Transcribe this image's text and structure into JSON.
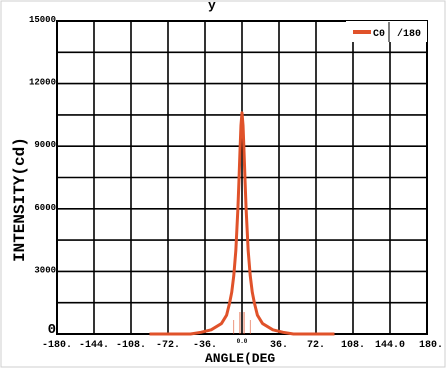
{
  "chart_data": {
    "type": "line",
    "title_fragment": "y",
    "xlabel": "ANGLE(DEG",
    "ylabel": "INTENSITY(cd)",
    "xlim": [
      -180,
      180
    ],
    "ylim": [
      0,
      15000
    ],
    "x_tick_labels": [
      "-180.",
      "-144.",
      "-108.",
      "-72.",
      "-36.",
      "0.0",
      "36.",
      "72.",
      "108.",
      "144.0",
      "180."
    ],
    "x_tick_values": [
      -180,
      -144,
      -108,
      -72,
      -36,
      0,
      36,
      72,
      108,
      144,
      180
    ],
    "y_tick_labels": [
      "0",
      "3000",
      "6000",
      "9000",
      "12000",
      "15000"
    ],
    "y_tick_values": [
      0,
      3000,
      6000,
      9000,
      12000,
      15000
    ],
    "grid": true,
    "grid_cols": 10,
    "grid_rows": 10,
    "legend_position": "top-right",
    "legend": {
      "series_label": "C0",
      "extra_label": "/180"
    },
    "series": [
      {
        "name": "C0",
        "color": "#e0522a",
        "x": [
          -90,
          -70,
          -50,
          -40,
          -30,
          -20,
          -15,
          -12,
          -10,
          -8,
          -6,
          -5,
          -4,
          -3,
          -2,
          -1,
          0,
          1,
          2,
          3,
          4,
          5,
          6,
          8,
          10,
          12,
          15,
          20,
          30,
          40,
          50,
          70,
          90
        ],
        "y": [
          0,
          0,
          0,
          80,
          200,
          500,
          900,
          1500,
          2000,
          2800,
          4000,
          5000,
          6000,
          7300,
          8700,
          10000,
          10600,
          10000,
          8700,
          7300,
          6000,
          5000,
          4000,
          2800,
          2000,
          1500,
          900,
          500,
          200,
          80,
          0,
          0,
          0
        ]
      }
    ]
  }
}
